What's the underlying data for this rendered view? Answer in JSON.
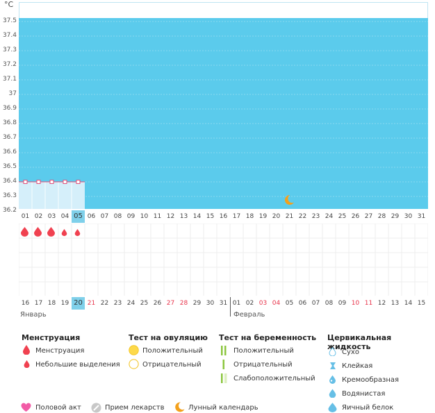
{
  "unit": "°C",
  "y_ticks": [
    "37.5",
    "37.4",
    "37.3",
    "37.2",
    "37.1",
    "37",
    "36.9",
    "36.8",
    "36.7",
    "36.6",
    "36.5",
    "36.4",
    "36.3",
    "36.2"
  ],
  "cycle_days": [
    {
      "label": "01"
    },
    {
      "label": "02"
    },
    {
      "label": "03"
    },
    {
      "label": "04"
    },
    {
      "label": "05",
      "current": true
    },
    {
      "label": "06"
    },
    {
      "label": "07"
    },
    {
      "label": "08"
    },
    {
      "label": "09"
    },
    {
      "label": "10"
    },
    {
      "label": "11"
    },
    {
      "label": "12"
    },
    {
      "label": "13"
    },
    {
      "label": "14"
    },
    {
      "label": "15"
    },
    {
      "label": "16"
    },
    {
      "label": "17"
    },
    {
      "label": "18"
    },
    {
      "label": "19"
    },
    {
      "label": "20"
    },
    {
      "label": "21"
    },
    {
      "label": "22"
    },
    {
      "label": "23"
    },
    {
      "label": "24"
    },
    {
      "label": "25"
    },
    {
      "label": "26"
    },
    {
      "label": "27"
    },
    {
      "label": "28"
    },
    {
      "label": "29"
    },
    {
      "label": "30"
    },
    {
      "label": "31"
    }
  ],
  "calendar_dates": [
    {
      "label": "16"
    },
    {
      "label": "17"
    },
    {
      "label": "18"
    },
    {
      "label": "19"
    },
    {
      "label": "20",
      "current": true
    },
    {
      "label": "21",
      "red": true
    },
    {
      "label": "22"
    },
    {
      "label": "23"
    },
    {
      "label": "24"
    },
    {
      "label": "25"
    },
    {
      "label": "26"
    },
    {
      "label": "27",
      "red": true
    },
    {
      "label": "28",
      "red": true
    },
    {
      "label": "29"
    },
    {
      "label": "30"
    },
    {
      "label": "31"
    },
    {
      "label": "01"
    },
    {
      "label": "02"
    },
    {
      "label": "03",
      "red": true
    },
    {
      "label": "04",
      "red": true
    },
    {
      "label": "05"
    },
    {
      "label": "06"
    },
    {
      "label": "07"
    },
    {
      "label": "08"
    },
    {
      "label": "09"
    },
    {
      "label": "10",
      "red": true
    },
    {
      "label": "11",
      "red": true
    },
    {
      "label": "12"
    },
    {
      "label": "13"
    },
    {
      "label": "14"
    },
    {
      "label": "15"
    }
  ],
  "months": {
    "january": "Январь",
    "february": "Февраль"
  },
  "temperature": [
    36.4,
    36.4,
    36.4,
    36.4,
    36.4
  ],
  "menstruation_marks": [
    "heavy",
    "heavy",
    "heavy",
    "light",
    "light"
  ],
  "lunar_day_index": 20,
  "colors": {
    "plot_bg": "#5bcbec",
    "fill": "#d5effa",
    "line": "#e0507a",
    "drop": "#f04150",
    "moon": "#f4a11c"
  },
  "legend": {
    "menstruation": {
      "title": "Менструация",
      "items": [
        "Менструация",
        "Небольшие выделения"
      ]
    },
    "ovulation": {
      "title": "Тест на овуляцию",
      "items": [
        "Положительный",
        "Отрицательный"
      ]
    },
    "pregnancy": {
      "title": "Тест на беременность",
      "items": [
        "Положительный",
        "Отрицательный",
        "Слабоположительный"
      ]
    },
    "cervical": {
      "title": "Цервикальная жидкость",
      "items": [
        "Сухо",
        "Клейкая",
        "Кремообразная",
        "Водянистая",
        "Яичный белок"
      ]
    },
    "bottom": [
      "Половой акт",
      "Прием лекарств",
      "Лунный календарь"
    ]
  }
}
